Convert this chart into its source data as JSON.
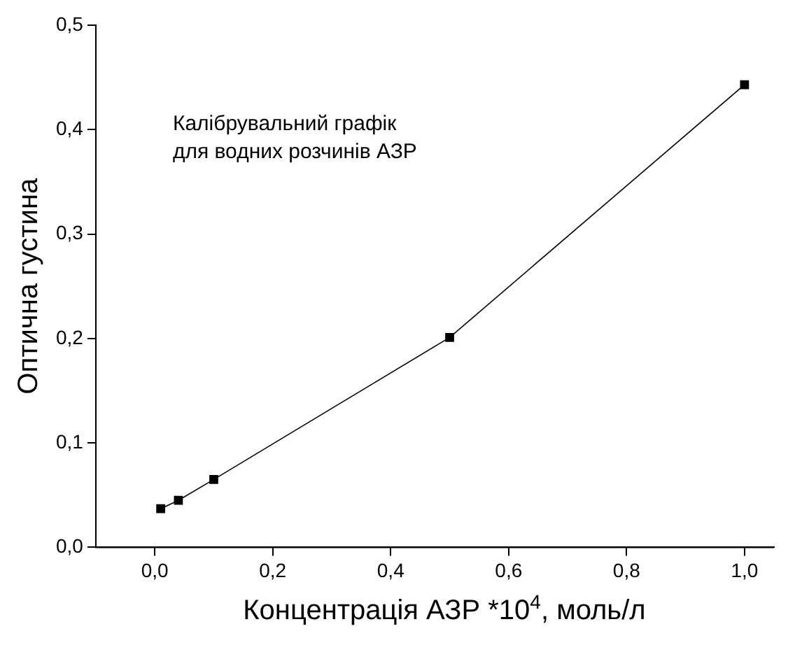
{
  "chart_data": {
    "type": "line",
    "xlabel": "Концентрація АЗР *10$^{4}$, моль/л",
    "ylabel": "Оптична густина",
    "annotations": [
      "Калібрувальний графік\nдля водних розчинів АЗР"
    ],
    "x": [
      0.01,
      0.04,
      0.1,
      0.5,
      1.0
    ],
    "series": [
      {
        "color": "#000000",
        "values": [
          0.037,
          0.045,
          0.065,
          0.201,
          0.443
        ]
      }
    ],
    "xlim": [
      -0.1,
      1.05
    ],
    "ylim": [
      0,
      0.5
    ],
    "xticks": [
      {
        "value": 0,
        "label": "0,0"
      },
      {
        "value": 0.2,
        "label": "0,2"
      },
      {
        "value": 0.4,
        "label": "0,4"
      },
      {
        "value": 0.6,
        "label": "0,6"
      },
      {
        "value": 0.8,
        "label": "0,8"
      },
      {
        "value": 1,
        "label": "1,0"
      }
    ],
    "yticks": [
      {
        "value": 0,
        "label": "0,0"
      },
      {
        "value": 0.1,
        "label": "0,1"
      },
      {
        "value": 0.2,
        "label": "0,2"
      },
      {
        "value": 0.3,
        "label": "0,3"
      },
      {
        "value": 0.4,
        "label": "0,4"
      },
      {
        "value": 0.5,
        "label": "0,5"
      }
    ],
    "grid": false,
    "legend": false,
    "marker": "square",
    "line_style": "solid"
  }
}
